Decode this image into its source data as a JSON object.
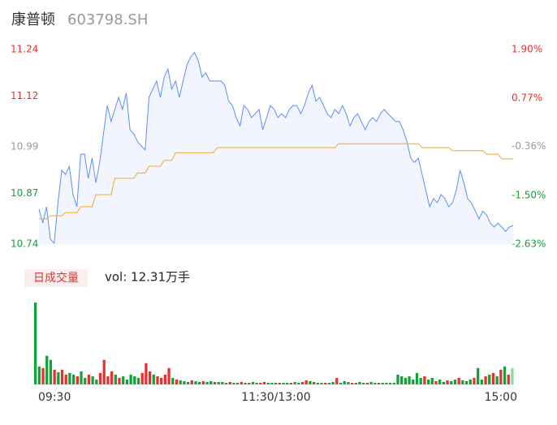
{
  "header": {
    "name": "康普顿",
    "code": "603798.SH"
  },
  "chart_data": [
    {
      "type": "line",
      "ylim": [
        10.74,
        11.24
      ],
      "yticks": [
        11.24,
        11.12,
        10.99,
        10.87,
        10.74
      ],
      "y2lim": [
        -2.63,
        1.9
      ],
      "y2ticks": [
        {
          "value": 1.9,
          "label": "1.90%"
        },
        {
          "value": 0.77,
          "label": "0.77%"
        },
        {
          "value": -0.36,
          "label": "-0.36%"
        },
        {
          "value": -1.5,
          "label": "-1.50%"
        },
        {
          "value": -2.63,
          "label": "-2.63%"
        }
      ],
      "tick_colors": [
        "#e8312f",
        "#e8312f",
        "#999999",
        "#14a03a",
        "#14a03a"
      ],
      "area_color": "#f2f5fd",
      "series": [
        {
          "color": "#5b8ff9",
          "values": [
            10.83,
            10.794,
            10.836,
            10.753,
            10.742,
            10.846,
            10.93,
            10.919,
            10.94,
            10.867,
            10.836,
            10.971,
            10.971,
            10.909,
            10.961,
            10.898,
            10.95,
            11.023,
            11.096,
            11.055,
            11.086,
            11.117,
            11.086,
            11.128,
            11.034,
            11.023,
            11.003,
            10.992,
            10.982,
            11.117,
            11.138,
            11.159,
            11.117,
            11.169,
            11.19,
            11.138,
            11.159,
            11.117,
            11.159,
            11.2,
            11.221,
            11.232,
            11.211,
            11.169,
            11.18,
            11.159,
            11.159,
            11.159,
            11.159,
            11.148,
            11.107,
            11.096,
            11.065,
            11.044,
            11.096,
            11.086,
            11.065,
            11.075,
            11.086,
            11.034,
            11.065,
            11.096,
            11.086,
            11.065,
            11.075,
            11.065,
            11.086,
            11.096,
            11.096,
            11.075,
            11.096,
            11.128,
            11.148,
            11.107,
            11.117,
            11.096,
            11.075,
            11.065,
            11.086,
            11.075,
            11.096,
            11.075,
            11.044,
            11.065,
            11.075,
            11.055,
            11.034,
            11.055,
            11.065,
            11.055,
            11.075,
            11.086,
            11.075,
            11.065,
            11.055,
            11.055,
            11.034,
            11.003,
            10.961,
            10.95,
            10.961,
            10.919,
            10.878,
            10.836,
            10.857,
            10.846,
            10.867,
            10.857,
            10.836,
            10.846,
            10.878,
            10.93,
            10.898,
            10.857,
            10.846,
            10.825,
            10.805,
            10.825,
            10.815,
            10.794,
            10.784,
            10.794,
            10.784,
            10.773,
            10.784,
            10.788
          ]
        },
        {
          "color": "#f5a623",
          "values": [
            10.805,
            10.805,
            10.805,
            10.813,
            10.813,
            10.813,
            10.813,
            10.821,
            10.821,
            10.821,
            10.821,
            10.836,
            10.836,
            10.836,
            10.836,
            10.867,
            10.867,
            10.867,
            10.867,
            10.867,
            10.909,
            10.909,
            10.909,
            10.909,
            10.909,
            10.909,
            10.923,
            10.923,
            10.923,
            10.94,
            10.94,
            10.94,
            10.94,
            10.955,
            10.955,
            10.955,
            10.975,
            10.975,
            10.975,
            10.975,
            10.975,
            10.975,
            10.975,
            10.975,
            10.975,
            10.975,
            10.975,
            10.988,
            10.988,
            10.988,
            10.988,
            10.988,
            10.988,
            10.988,
            10.988,
            10.988,
            10.988,
            10.988,
            10.988,
            10.988,
            10.988,
            10.988,
            10.988,
            10.988,
            10.988,
            10.988,
            10.988,
            10.988,
            10.988,
            10.988,
            10.988,
            10.988,
            10.988,
            10.988,
            10.988,
            10.988,
            10.988,
            10.988,
            10.988,
            10.998,
            10.998,
            10.998,
            10.998,
            10.998,
            10.998,
            10.998,
            10.998,
            10.998,
            10.998,
            10.998,
            10.998,
            10.998,
            10.998,
            10.998,
            10.998,
            10.998,
            10.998,
            10.998,
            10.998,
            10.998,
            10.998,
            10.988,
            10.988,
            10.988,
            10.988,
            10.988,
            10.988,
            10.988,
            10.988,
            10.98,
            10.98,
            10.98,
            10.98,
            10.98,
            10.98,
            10.98,
            10.98,
            10.98,
            10.971,
            10.971,
            10.971,
            10.971,
            10.959,
            10.959,
            10.959,
            10.959
          ]
        }
      ]
    },
    {
      "type": "bar",
      "label": "日成交量",
      "annotation": "vol: 12.31万手",
      "xlim": [
        0,
        240
      ],
      "xticks": [
        {
          "value": 0,
          "label": "09:30"
        },
        {
          "value": 120,
          "label": "11:30/13:00"
        },
        {
          "value": 240,
          "label": "15:00"
        }
      ],
      "values": [
        100,
        22,
        20,
        35,
        30,
        18,
        15,
        18,
        12,
        14,
        12,
        10,
        16,
        8,
        12,
        10,
        6,
        14,
        30,
        10,
        16,
        12,
        8,
        10,
        6,
        12,
        10,
        8,
        14,
        26,
        16,
        12,
        10,
        8,
        12,
        20,
        8,
        6,
        5,
        4,
        3,
        5,
        4,
        3,
        4,
        3,
        4,
        3,
        3,
        3,
        2,
        3,
        2,
        2,
        3,
        2,
        2,
        3,
        2,
        2,
        3,
        2,
        2,
        2,
        2,
        2,
        2,
        2,
        3,
        2,
        3,
        5,
        4,
        3,
        2,
        2,
        2,
        2,
        3,
        8,
        2,
        4,
        3,
        2,
        2,
        3,
        2,
        2,
        3,
        2,
        2,
        2,
        2,
        2,
        2,
        12,
        10,
        8,
        10,
        6,
        14,
        8,
        10,
        6,
        8,
        4,
        6,
        3,
        5,
        4,
        6,
        8,
        5,
        4,
        6,
        8,
        20,
        6,
        10,
        12,
        14,
        10,
        18,
        22,
        12,
        20
      ],
      "colors": [
        "#14a03a",
        "#14a03a",
        "#e8312f",
        "#14a03a",
        "#14a03a",
        "#e8312f",
        "#14a03a",
        "#e8312f",
        "#e8312f",
        "#14a03a",
        "#14a03a",
        "#e8312f",
        "#14a03a",
        "#14a03a",
        "#e8312f",
        "#14a03a",
        "#14a03a",
        "#e8312f",
        "#e8312f",
        "#e8312f",
        "#e8312f",
        "#14a03a",
        "#e8312f",
        "#14a03a",
        "#14a03a",
        "#14a03a",
        "#14a03a",
        "#14a03a",
        "#e8312f",
        "#e8312f",
        "#e8312f",
        "#14a03a",
        "#e8312f",
        "#e8312f",
        "#e8312f",
        "#e8312f",
        "#14a03a",
        "#e8312f",
        "#14a03a",
        "#14a03a",
        "#14a03a",
        "#e8312f",
        "#14a03a",
        "#14a03a",
        "#e8312f",
        "#14a03a",
        "#14a03a",
        "#e8312f",
        "#14a03a",
        "#14a03a",
        "#14a03a",
        "#e8312f",
        "#14a03a",
        "#14a03a",
        "#e8312f",
        "#14a03a",
        "#e8312f",
        "#14a03a",
        "#14a03a",
        "#e8312f",
        "#e8312f",
        "#14a03a",
        "#14a03a",
        "#14a03a",
        "#e8312f",
        "#14a03a",
        "#14a03a",
        "#e8312f",
        "#14a03a",
        "#14a03a",
        "#e8312f",
        "#e8312f",
        "#14a03a",
        "#e8312f",
        "#14a03a",
        "#14a03a",
        "#e8312f",
        "#14a03a",
        "#14a03a",
        "#e8312f",
        "#14a03a",
        "#14a03a",
        "#14a03a",
        "#e8312f",
        "#14a03a",
        "#14a03a",
        "#14a03a",
        "#e8312f",
        "#14a03a",
        "#14a03a",
        "#e8312f",
        "#14a03a",
        "#14a03a",
        "#14a03a",
        "#14a03a",
        "#14a03a",
        "#14a03a",
        "#14a03a",
        "#14a03a",
        "#14a03a",
        "#14a03a",
        "#14a03a",
        "#e8312f",
        "#14a03a",
        "#14a03a",
        "#e8312f",
        "#14a03a",
        "#14a03a",
        "#e8312f",
        "#14a03a",
        "#14a03a",
        "#e8312f",
        "#14a03a",
        "#14a03a",
        "#14a03a",
        "#e8312f",
        "#14a03a",
        "#14a03a",
        "#e8312f",
        "#14a03a",
        "#e8312f",
        "#14a03a",
        "#e8312f",
        "#14a03a",
        "#e8312f",
        "#8fd6a0"
      ]
    }
  ]
}
